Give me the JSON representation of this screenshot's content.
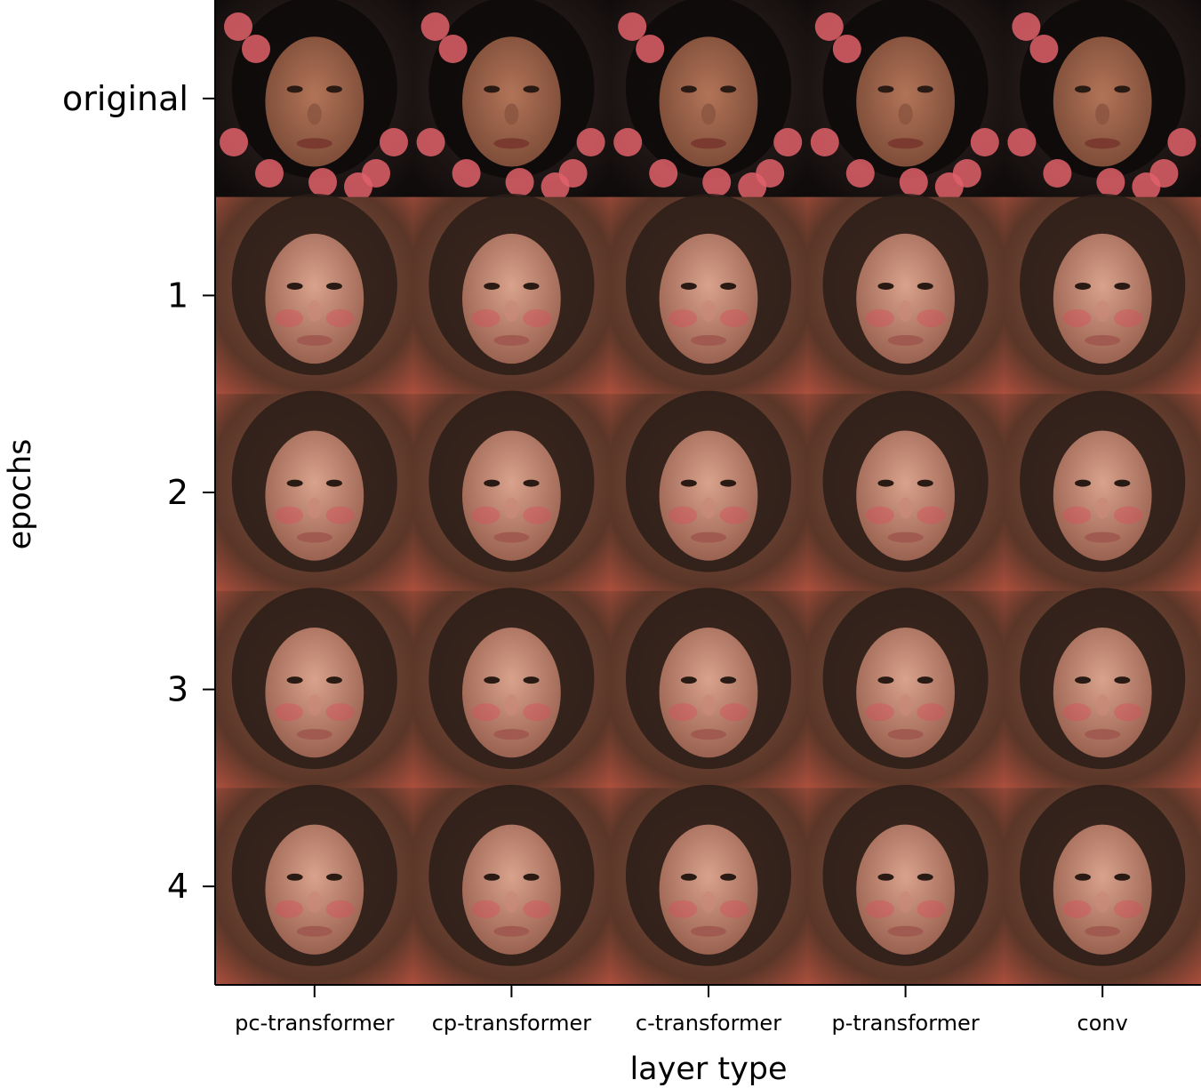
{
  "chart_data": {
    "type": "image-grid",
    "xlabel": "layer type",
    "ylabel": "epochs",
    "columns": [
      "pc-transformer",
      "cp-transformer",
      "c-transformer",
      "p-transformer",
      "conv"
    ],
    "rows": [
      "original",
      "1",
      "2",
      "3",
      "4"
    ],
    "cells": [
      {
        "row": "original",
        "column": "pc-transformer",
        "content": "face-photo"
      },
      {
        "row": "original",
        "column": "cp-transformer",
        "content": "face-photo"
      },
      {
        "row": "original",
        "column": "c-transformer",
        "content": "face-photo"
      },
      {
        "row": "original",
        "column": "p-transformer",
        "content": "face-photo"
      },
      {
        "row": "original",
        "column": "conv",
        "content": "face-photo"
      },
      {
        "row": "1",
        "column": "pc-transformer",
        "content": "face-photo"
      },
      {
        "row": "1",
        "column": "cp-transformer",
        "content": "face-photo"
      },
      {
        "row": "1",
        "column": "c-transformer",
        "content": "face-photo"
      },
      {
        "row": "1",
        "column": "p-transformer",
        "content": "face-photo"
      },
      {
        "row": "1",
        "column": "conv",
        "content": "face-photo"
      },
      {
        "row": "2",
        "column": "pc-transformer",
        "content": "face-photo"
      },
      {
        "row": "2",
        "column": "cp-transformer",
        "content": "face-photo"
      },
      {
        "row": "2",
        "column": "c-transformer",
        "content": "face-photo"
      },
      {
        "row": "2",
        "column": "p-transformer",
        "content": "face-photo"
      },
      {
        "row": "2",
        "column": "conv",
        "content": "face-photo"
      },
      {
        "row": "3",
        "column": "pc-transformer",
        "content": "face-photo"
      },
      {
        "row": "3",
        "column": "cp-transformer",
        "content": "face-photo"
      },
      {
        "row": "3",
        "column": "c-transformer",
        "content": "face-photo"
      },
      {
        "row": "3",
        "column": "p-transformer",
        "content": "face-photo"
      },
      {
        "row": "3",
        "column": "conv",
        "content": "face-photo"
      },
      {
        "row": "4",
        "column": "pc-transformer",
        "content": "face-photo"
      },
      {
        "row": "4",
        "column": "cp-transformer",
        "content": "face-photo"
      },
      {
        "row": "4",
        "column": "c-transformer",
        "content": "face-photo"
      },
      {
        "row": "4",
        "column": "p-transformer",
        "content": "face-photo"
      },
      {
        "row": "4",
        "column": "conv",
        "content": "face-photo"
      }
    ],
    "palette": {
      "original_bg": "#1a1414",
      "original_skin": "#a0674f",
      "original_flower": "#e0606a",
      "epoch_bg": "#7a4a3a",
      "epoch_skin": "#c08a76",
      "epoch_hair": "#2a1d18",
      "blush": "#d8505a"
    }
  }
}
